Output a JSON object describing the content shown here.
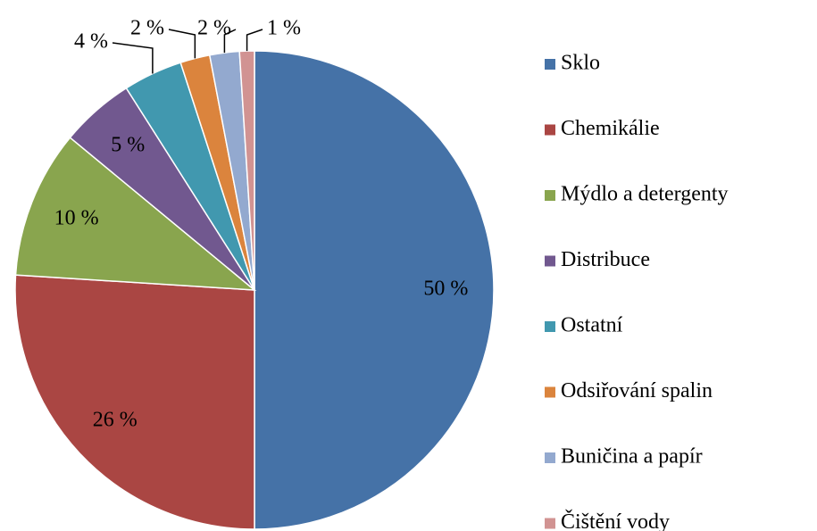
{
  "chart_data": {
    "type": "pie",
    "categories": [
      "Sklo",
      "Chemikálie",
      "Mýdlo a detergenty",
      "Distribuce",
      "Ostatní",
      "Odsiřování spalin",
      "Buničina a papír",
      "Čištění vody"
    ],
    "values": [
      50,
      26,
      10,
      5,
      4,
      2,
      2,
      1
    ],
    "value_labels": [
      "50 %",
      "26 %",
      "10 %",
      "5 %",
      "4 %",
      "2 %",
      "2 %",
      "1 %"
    ],
    "colors": [
      "#4572A7",
      "#AA4643",
      "#89A54E",
      "#71588F",
      "#4198AF",
      "#DB843D",
      "#93A9CF",
      "#D19392"
    ],
    "legend": "right"
  }
}
